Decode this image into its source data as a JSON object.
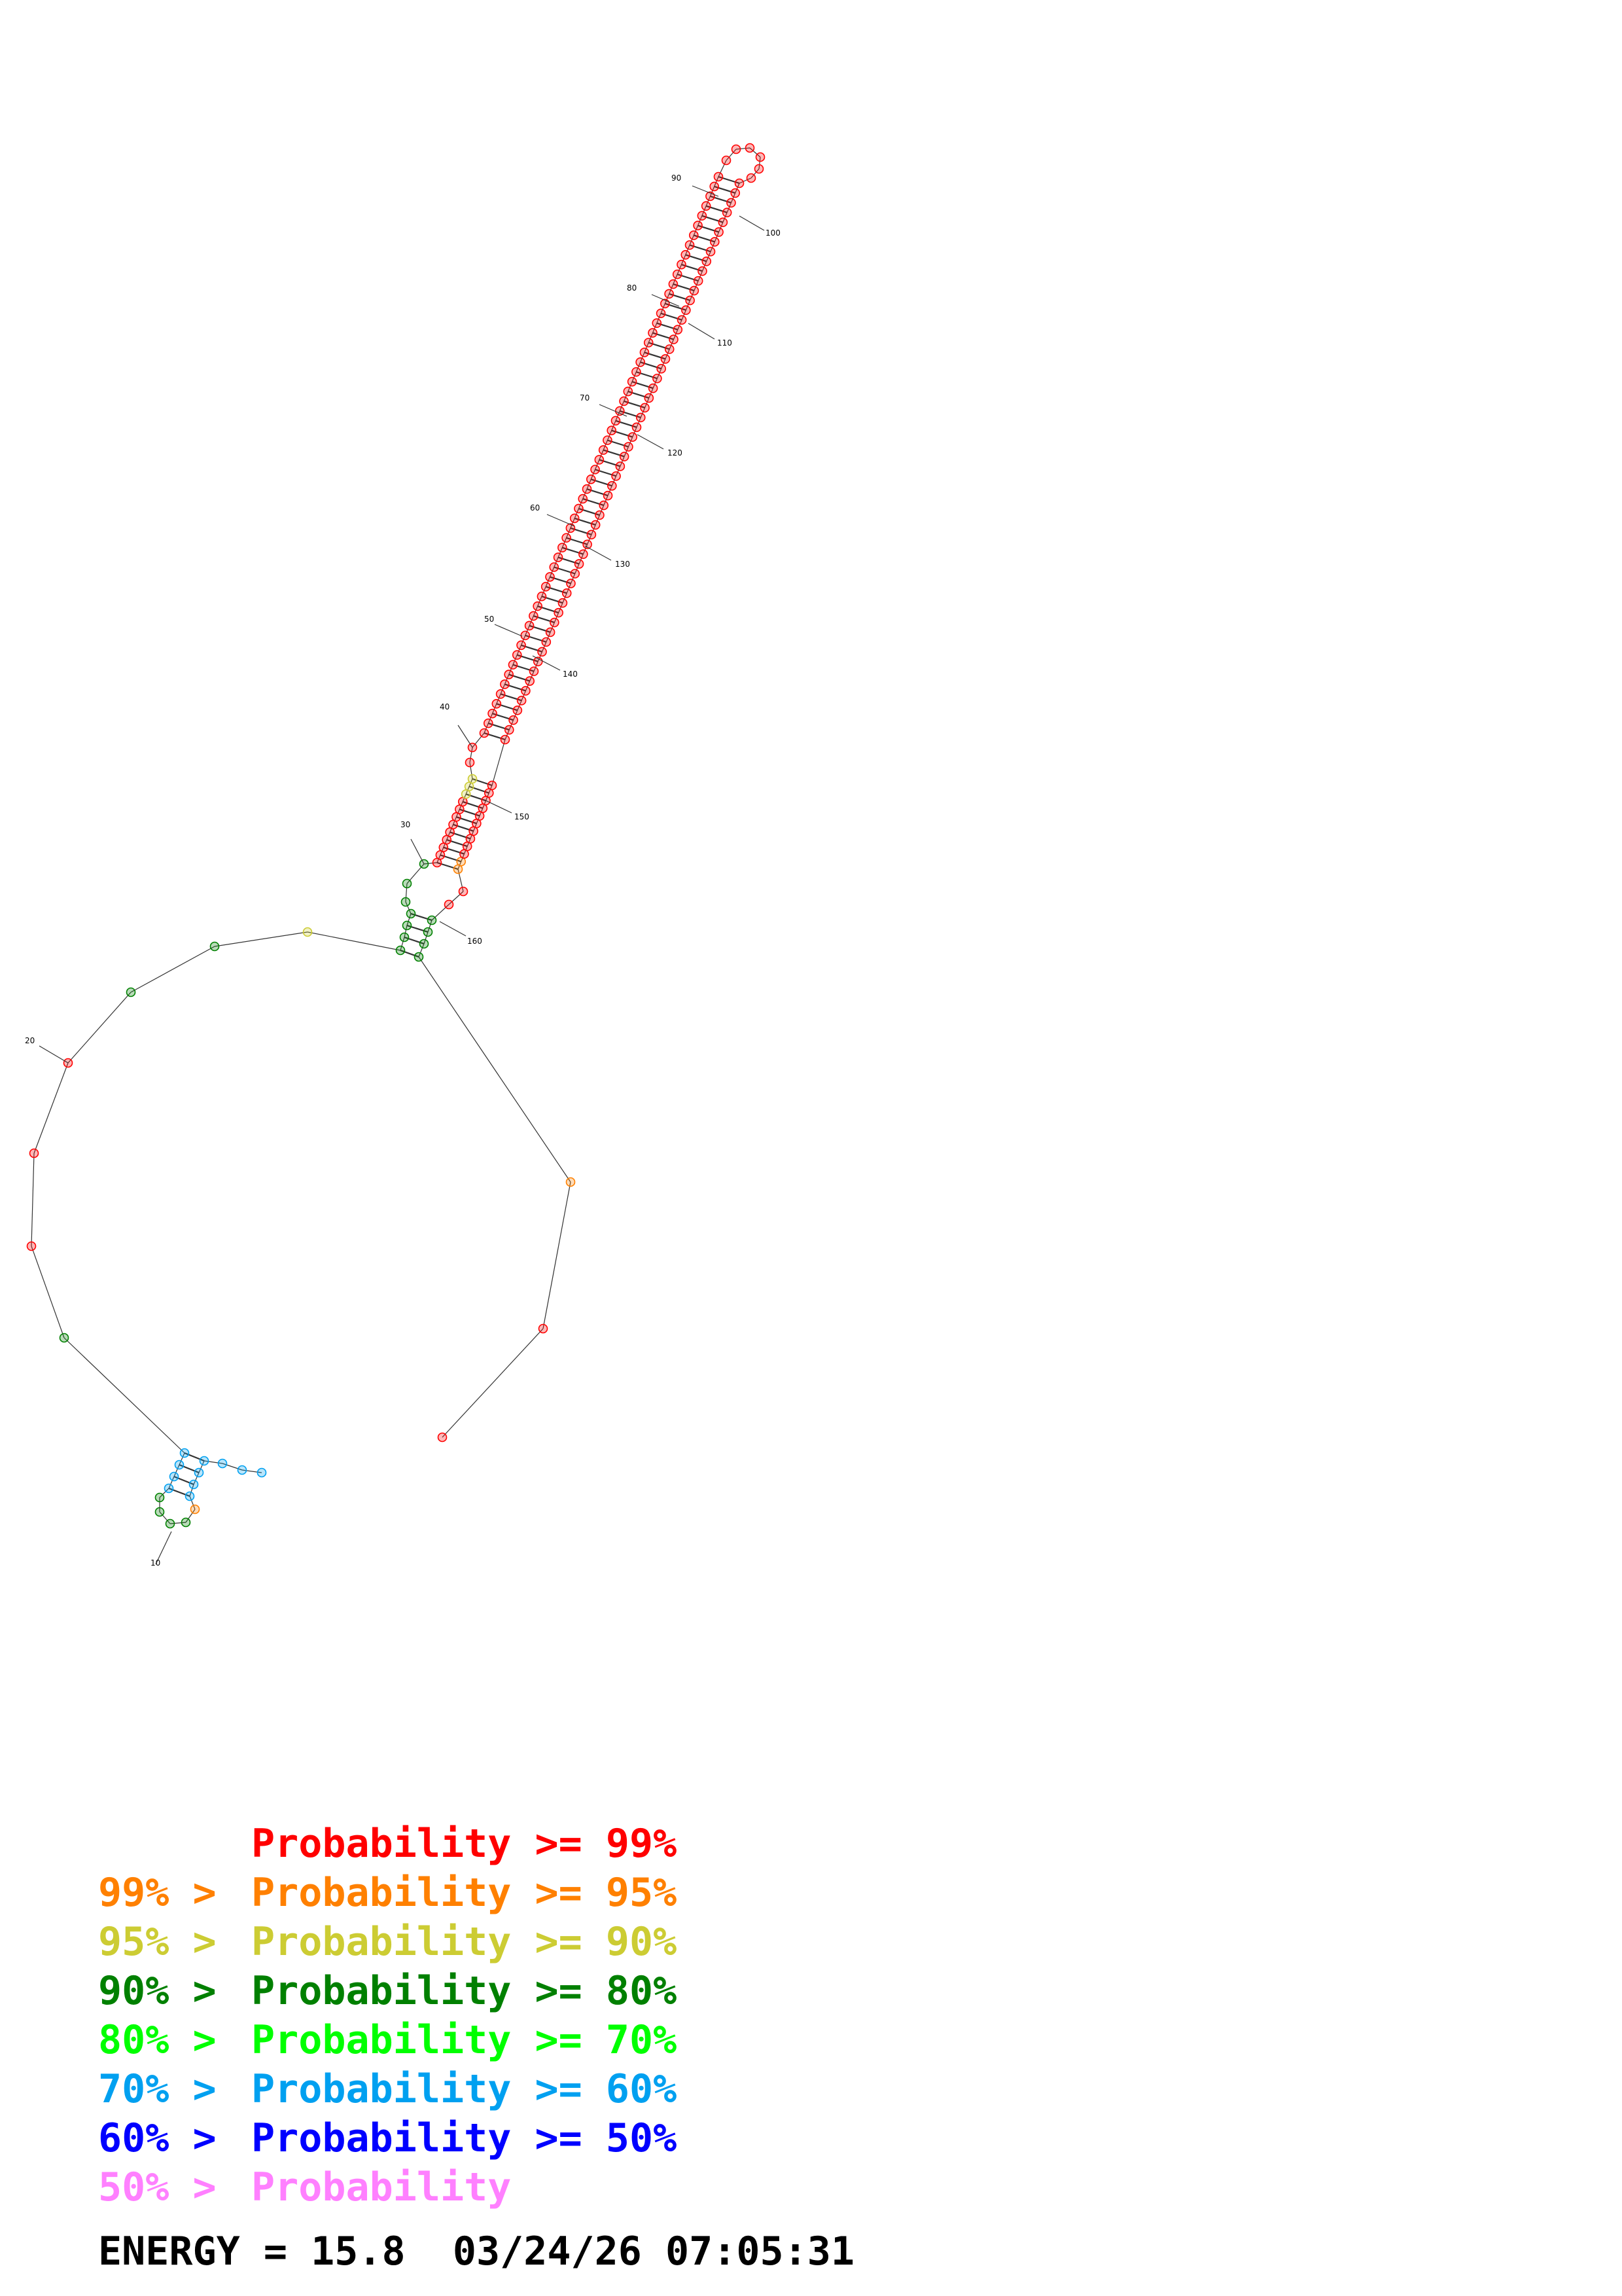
{
  "legend": [
    {
      "prefix": "",
      "label": "Probability",
      "op": ">=",
      "value": "99%",
      "color": "#ff0000"
    },
    {
      "prefix": "99% >",
      "label": "Probability",
      "op": ">=",
      "value": "95%",
      "color": "#ff8000"
    },
    {
      "prefix": "95% >",
      "label": "Probability",
      "op": ">=",
      "value": "90%",
      "color": "#cccc33"
    },
    {
      "prefix": "90% >",
      "label": "Probability",
      "op": ">=",
      "value": "80%",
      "color": "#008000"
    },
    {
      "prefix": "80% >",
      "label": "Probability",
      "op": ">=",
      "value": "70%",
      "color": "#00ff00"
    },
    {
      "prefix": "70% >",
      "label": "Probability",
      "op": ">=",
      "value": "60%",
      "color": "#00a0f0"
    },
    {
      "prefix": "60% >",
      "label": "Probability",
      "op": ">=",
      "value": "50%",
      "color": "#0000ff"
    },
    {
      "prefix": "50% >",
      "label": "Probability",
      "op": "",
      "value": "",
      "color": "#ff80ff"
    }
  ],
  "energy_line": "ENERGY = 15.8  03/24/26 07:05:31",
  "nucleotide_tick_labels": [
    "10",
    "20",
    "30",
    "40",
    "50",
    "60",
    "70",
    "80",
    "90",
    "100",
    "110",
    "120",
    "130",
    "140",
    "150",
    "160"
  ],
  "probability_colors": {
    "p99": "#ff0000",
    "p95": "#ff8000",
    "p90": "#cccc33",
    "p80": "#008000",
    "p70": "#00ff00",
    "p60": "#00a0f0",
    "p50": "#0000ff",
    "low": "#ff80ff"
  }
}
